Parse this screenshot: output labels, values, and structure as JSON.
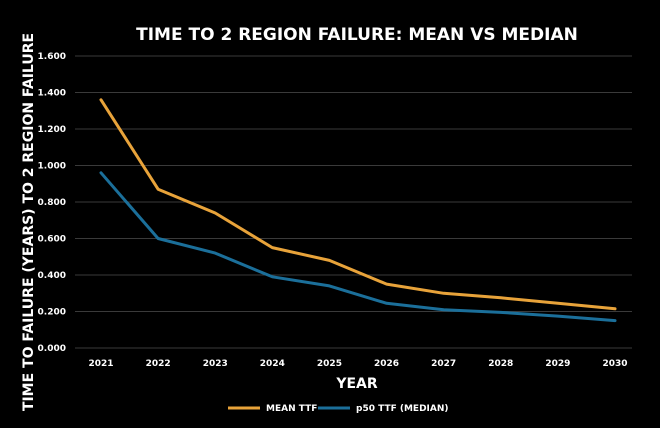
{
  "chart_data": {
    "type": "line",
    "title": "TIME TO 2 REGION FAILURE: MEAN VS MEDIAN",
    "xlabel": "YEAR",
    "ylabel": "TIME TO FAILURE (YEARS) TO 2 REGION FAILURE",
    "categories": [
      "2021",
      "2022",
      "2023",
      "2024",
      "2025",
      "2026",
      "2027",
      "2028",
      "2029",
      "2030"
    ],
    "ylim": [
      0,
      1.6
    ],
    "yticks": [
      "0.000",
      "0.200",
      "0.400",
      "0.600",
      "0.800",
      "1.000",
      "1.200",
      "1.400",
      "1.600"
    ],
    "grid": true,
    "legend_position": "bottom",
    "series": [
      {
        "name": "MEAN TTF",
        "color": "#E8A33A",
        "values": [
          1.36,
          0.87,
          0.74,
          0.55,
          0.48,
          0.35,
          0.3,
          0.275,
          0.245,
          0.215
        ]
      },
      {
        "name": "p50 TTF (MEDIAN)",
        "color": "#1B6F9A",
        "values": [
          0.96,
          0.6,
          0.52,
          0.39,
          0.34,
          0.245,
          0.21,
          0.195,
          0.175,
          0.15
        ]
      }
    ]
  }
}
